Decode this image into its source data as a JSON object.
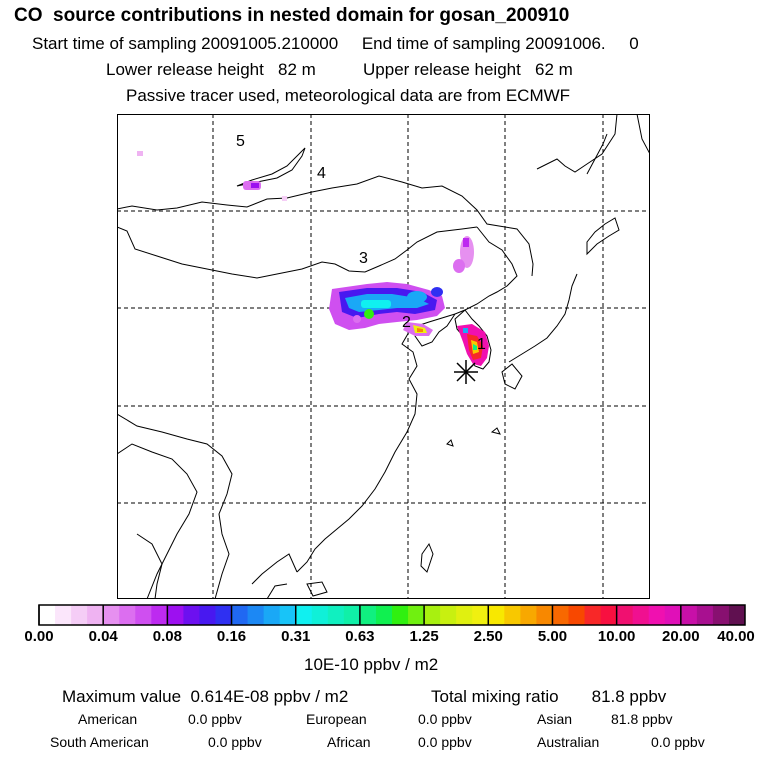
{
  "header": {
    "title": "CO  source contributions in nested domain for gosan_200910",
    "sampling": "Start time of sampling 20091005.210000     End time of sampling 20091006.     0",
    "release": "Lower release height   82 m          Upper release height   62 m",
    "note": "Passive tracer used, meteorological data are from ECMWF"
  },
  "map": {
    "labels": [
      "5",
      "4",
      "3",
      "2",
      "1"
    ],
    "receptor_marker": "asterisk-icon"
  },
  "colorbar": {
    "ticks": [
      "0.00",
      "0.04",
      "0.08",
      "0.16",
      "0.31",
      "0.63",
      "1.25",
      "2.50",
      "5.00",
      "10.00",
      "20.00",
      "40.00"
    ],
    "unit": "10E-10 ppbv / m2",
    "colors": [
      [
        "#ffffff",
        "#fbe6fb",
        "#f5cdf6",
        "#efb3f2"
      ],
      [
        "#e690f0",
        "#dc6ef0",
        "#cf4ff0",
        "#bd2af0"
      ],
      [
        "#9d10f0",
        "#6d10f0",
        "#4818f0",
        "#2f30f2"
      ],
      [
        "#2068f2",
        "#1c88f4",
        "#1aa8f6",
        "#18c4f8"
      ],
      [
        "#10f0f0",
        "#10f0d8",
        "#10f0c0",
        "#10f0a8"
      ],
      [
        "#10f080",
        "#10f050",
        "#30f010",
        "#70f010"
      ],
      [
        "#a8f010",
        "#c8f010",
        "#e0f010",
        "#f0f010"
      ],
      [
        "#f8e800",
        "#f8c800",
        "#f8a800",
        "#f88800"
      ],
      [
        "#f86800",
        "#f84800",
        "#f82828",
        "#f81040"
      ],
      [
        "#f01070",
        "#f01090",
        "#f010b0",
        "#e010b8"
      ],
      [
        "#c810a8",
        "#a81090",
        "#881070",
        "#601050"
      ]
    ]
  },
  "summary": {
    "maximum": "Maximum value  0.614E-08 ppbv / m2",
    "total": "Total mixing ratio       81.8 ppbv"
  },
  "regions": [
    {
      "name": "American",
      "value": "0.0 ppbv"
    },
    {
      "name": "European",
      "value": "0.0 ppbv"
    },
    {
      "name": "Asian",
      "value": "81.8 ppbv"
    },
    {
      "name": "South American",
      "value": "0.0 ppbv"
    },
    {
      "name": "African",
      "value": "0.0 ppbv"
    },
    {
      "name": "Australian",
      "value": "0.0 ppbv"
    }
  ]
}
